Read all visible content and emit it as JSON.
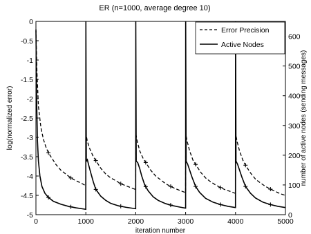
{
  "chart_data": {
    "type": "line",
    "title": "ER (n=1000, average degree 10)",
    "xlabel": "iteration number",
    "ylabel_left": "log(normalized error)",
    "ylabel_right": "number of active nodes (sending messages)",
    "xlim": [
      0,
      5000
    ],
    "ylim_left": [
      -5,
      0
    ],
    "ylim_right": [
      0,
      650
    ],
    "x_ticks": [
      0,
      1000,
      2000,
      3000,
      4000,
      5000
    ],
    "x_tick_labels": [
      "0",
      "1000",
      "2000",
      "3000",
      "4000",
      "5000"
    ],
    "y_left_ticks": [
      0,
      -0.5,
      -1,
      -1.5,
      -2,
      -2.5,
      -3,
      -3.5,
      -4,
      -4.5,
      -5
    ],
    "y_left_tick_labels": [
      "0",
      "-0.5",
      "-1",
      "-1.5",
      "-2",
      "-2.5",
      "-3",
      "-3.5",
      "-4",
      "-4.5",
      "-5"
    ],
    "y_right_ticks": [
      0,
      100,
      200,
      300,
      400,
      500,
      600
    ],
    "y_right_tick_labels": [
      "0",
      "100",
      "200",
      "300",
      "400",
      "500",
      "600"
    ],
    "grid": false,
    "legend_position": "top-right",
    "series": [
      {
        "name": "Error Precision",
        "axis": "left",
        "style": "dashed",
        "color": "#000000",
        "points": [
          [
            0,
            -0.2
          ],
          [
            20,
            -1.3
          ],
          [
            50,
            -2.2
          ],
          [
            100,
            -2.75
          ],
          [
            150,
            -3.05
          ],
          [
            200,
            -3.25
          ],
          [
            250,
            -3.4
          ],
          [
            300,
            -3.5
          ],
          [
            400,
            -3.7
          ],
          [
            500,
            -3.85
          ],
          [
            600,
            -3.95
          ],
          [
            700,
            -4.05
          ],
          [
            800,
            -4.12
          ],
          [
            900,
            -4.18
          ],
          [
            999,
            -4.25
          ],
          [
            1001,
            -2.9
          ],
          [
            1030,
            -3.1
          ],
          [
            1080,
            -3.3
          ],
          [
            1150,
            -3.5
          ],
          [
            1200,
            -3.6
          ],
          [
            1300,
            -3.8
          ],
          [
            1400,
            -3.95
          ],
          [
            1500,
            -4.05
          ],
          [
            1600,
            -4.12
          ],
          [
            1700,
            -4.2
          ],
          [
            1800,
            -4.25
          ],
          [
            1900,
            -4.3
          ],
          [
            1999,
            -4.35
          ],
          [
            2001,
            -2.9
          ],
          [
            2030,
            -3.1
          ],
          [
            2080,
            -3.35
          ],
          [
            2150,
            -3.55
          ],
          [
            2200,
            -3.65
          ],
          [
            2300,
            -3.85
          ],
          [
            2400,
            -4.0
          ],
          [
            2500,
            -4.1
          ],
          [
            2600,
            -4.2
          ],
          [
            2700,
            -4.27
          ],
          [
            2800,
            -4.33
          ],
          [
            2900,
            -4.38
          ],
          [
            2999,
            -4.43
          ],
          [
            3001,
            -2.9
          ],
          [
            3030,
            -3.1
          ],
          [
            3080,
            -3.35
          ],
          [
            3150,
            -3.6
          ],
          [
            3200,
            -3.7
          ],
          [
            3300,
            -3.9
          ],
          [
            3400,
            -4.05
          ],
          [
            3500,
            -4.15
          ],
          [
            3600,
            -4.23
          ],
          [
            3700,
            -4.3
          ],
          [
            3800,
            -4.36
          ],
          [
            3900,
            -4.4
          ],
          [
            3999,
            -4.45
          ],
          [
            4001,
            -2.9
          ],
          [
            4030,
            -3.1
          ],
          [
            4080,
            -3.35
          ],
          [
            4150,
            -3.6
          ],
          [
            4200,
            -3.72
          ],
          [
            4300,
            -3.92
          ],
          [
            4400,
            -4.08
          ],
          [
            4500,
            -4.18
          ],
          [
            4600,
            -4.27
          ],
          [
            4700,
            -4.34
          ],
          [
            4800,
            -4.4
          ],
          [
            4900,
            -4.46
          ],
          [
            5000,
            -4.5
          ]
        ],
        "marker_x": [
          250,
          700,
          1200,
          1700,
          2200,
          2700,
          3200,
          3700,
          4200,
          4700
        ]
      },
      {
        "name": "Active Nodes",
        "axis": "right",
        "style": "solid",
        "color": "#000000",
        "points": [
          [
            0,
            620
          ],
          [
            15,
            380
          ],
          [
            30,
            250
          ],
          [
            50,
            180
          ],
          [
            80,
            130
          ],
          [
            120,
            95
          ],
          [
            180,
            72
          ],
          [
            250,
            58
          ],
          [
            350,
            45
          ],
          [
            500,
            35
          ],
          [
            650,
            28
          ],
          [
            800,
            23
          ],
          [
            999,
            18
          ],
          [
            1001,
            650
          ],
          [
            1010,
            180
          ],
          [
            1030,
            185
          ],
          [
            1060,
            165
          ],
          [
            1100,
            140
          ],
          [
            1150,
            110
          ],
          [
            1200,
            85
          ],
          [
            1300,
            62
          ],
          [
            1400,
            48
          ],
          [
            1500,
            38
          ],
          [
            1650,
            30
          ],
          [
            1800,
            25
          ],
          [
            1999,
            20
          ],
          [
            2001,
            650
          ],
          [
            2010,
            180
          ],
          [
            2040,
            175
          ],
          [
            2080,
            155
          ],
          [
            2120,
            130
          ],
          [
            2180,
            100
          ],
          [
            2250,
            80
          ],
          [
            2350,
            60
          ],
          [
            2450,
            48
          ],
          [
            2600,
            37
          ],
          [
            2750,
            30
          ],
          [
            2900,
            25
          ],
          [
            2999,
            22
          ],
          [
            3001,
            650
          ],
          [
            3010,
            180
          ],
          [
            3040,
            170
          ],
          [
            3080,
            150
          ],
          [
            3130,
            125
          ],
          [
            3200,
            95
          ],
          [
            3280,
            75
          ],
          [
            3400,
            55
          ],
          [
            3550,
            42
          ],
          [
            3700,
            34
          ],
          [
            3850,
            28
          ],
          [
            2999.9,
            22
          ],
          [
            3999,
            24
          ],
          [
            4001,
            650
          ],
          [
            4010,
            180
          ],
          [
            4040,
            170
          ],
          [
            4080,
            150
          ],
          [
            4130,
            125
          ],
          [
            4200,
            95
          ],
          [
            4300,
            72
          ],
          [
            4400,
            56
          ],
          [
            4550,
            42
          ],
          [
            4700,
            34
          ],
          [
            4850,
            28
          ],
          [
            5000,
            24
          ]
        ],
        "marker_x": [
          250,
          700,
          1200,
          1700,
          2200,
          2700,
          3200,
          3700,
          4200,
          4700
        ]
      }
    ]
  }
}
